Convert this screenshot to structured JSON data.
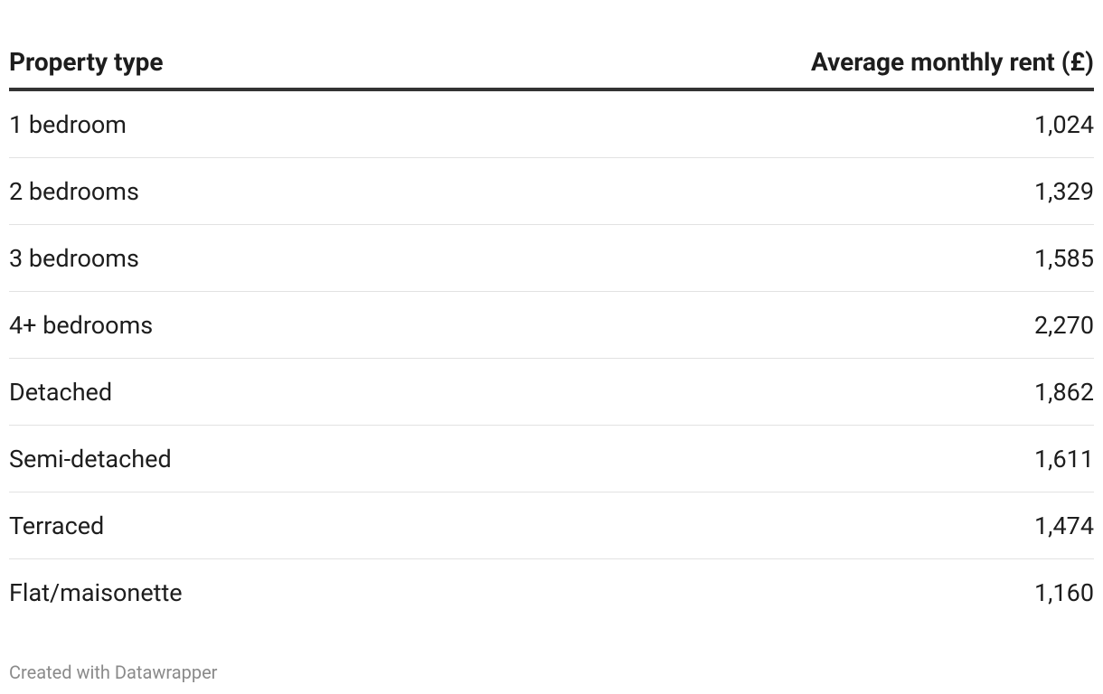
{
  "table": {
    "header": [
      "Property type",
      "Average monthly rent (£)"
    ],
    "rows": [
      [
        "1 bedroom",
        "1,024"
      ],
      [
        "2 bedrooms",
        "1,329"
      ],
      [
        "3 bedrooms",
        "1,585"
      ],
      [
        "4+ bedrooms",
        "2,270"
      ],
      [
        "Detached",
        "1,862"
      ],
      [
        "Semi-detached",
        "1,611"
      ],
      [
        "Terraced",
        "1,474"
      ],
      [
        "Flat/maisonette",
        "1,160"
      ]
    ]
  },
  "footer": "Created with Datawrapper"
}
